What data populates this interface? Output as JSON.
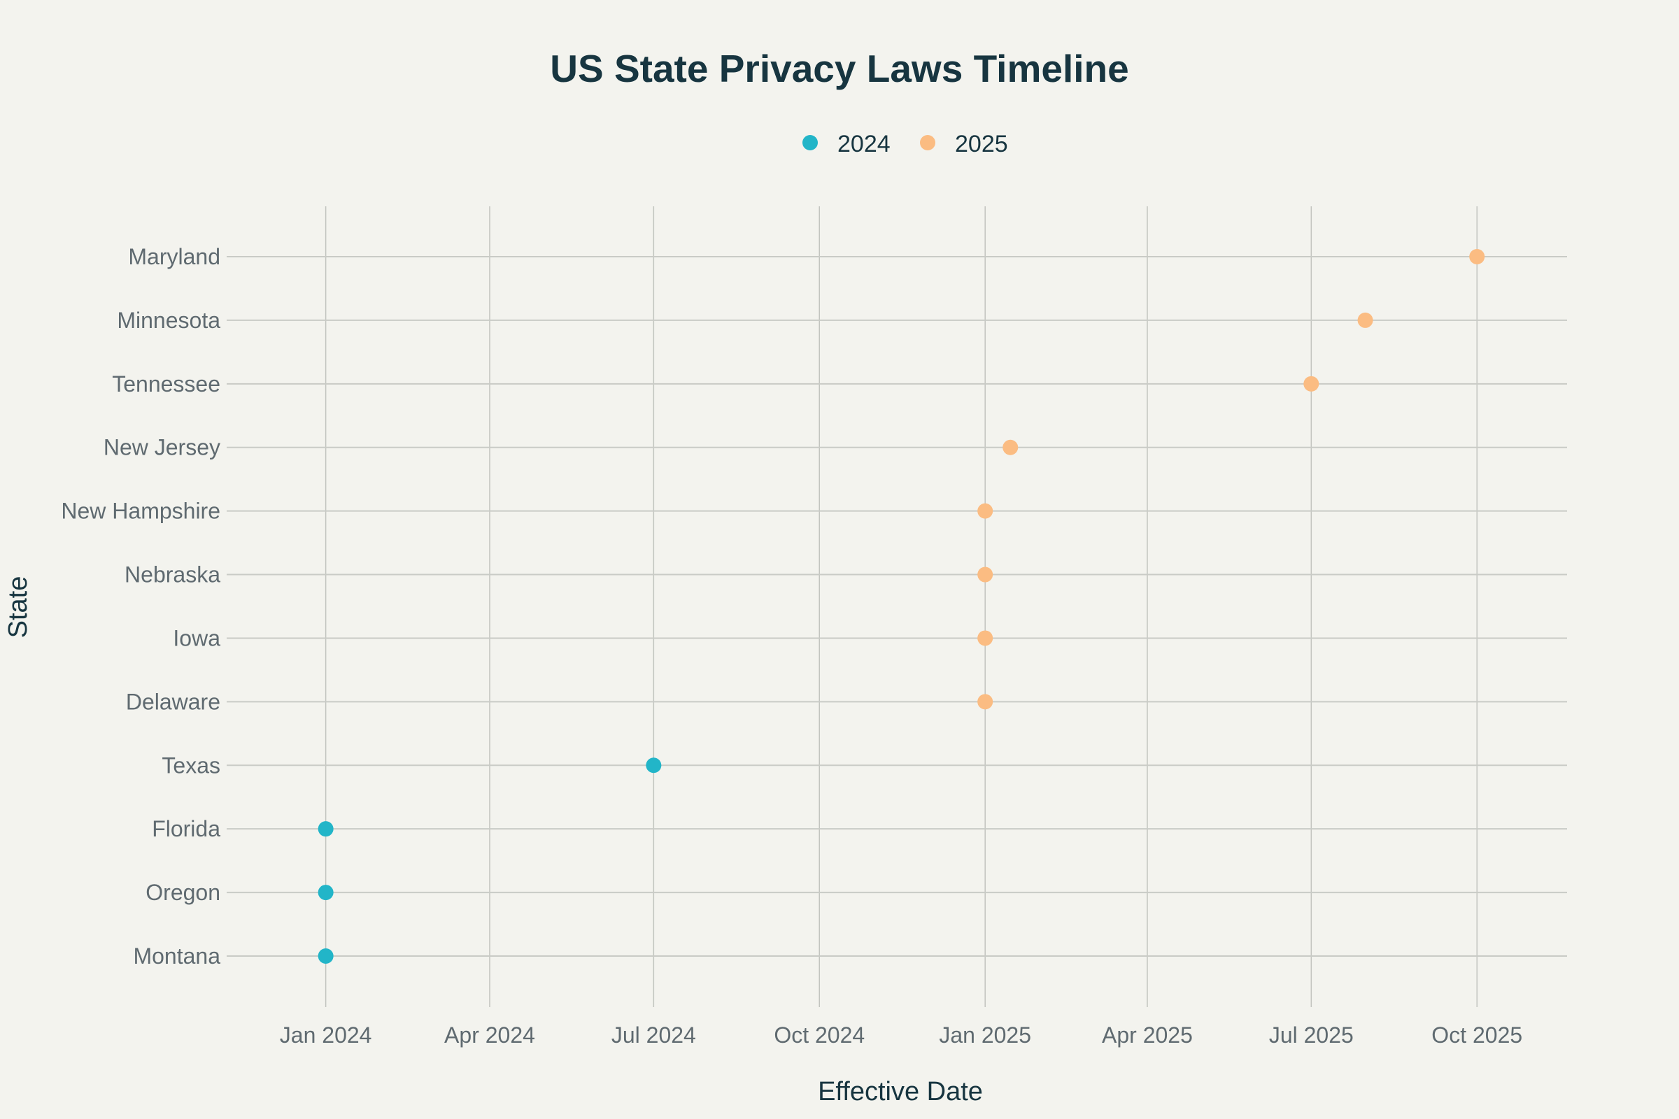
{
  "chart_data": {
    "type": "scatter",
    "title": "US State Privacy Laws Timeline",
    "xlabel": "Effective Date",
    "ylabel": "State",
    "x_axis_type": "date",
    "xlim": [
      "2023-11-07",
      "2025-11-20"
    ],
    "x_ticks": [
      {
        "date": "2024-01-01",
        "label": "Jan 2024"
      },
      {
        "date": "2024-04-01",
        "label": "Apr 2024"
      },
      {
        "date": "2024-07-01",
        "label": "Jul 2024"
      },
      {
        "date": "2024-10-01",
        "label": "Oct 2024"
      },
      {
        "date": "2025-01-01",
        "label": "Jan 2025"
      },
      {
        "date": "2025-04-01",
        "label": "Apr 2025"
      },
      {
        "date": "2025-07-01",
        "label": "Jul 2025"
      },
      {
        "date": "2025-10-01",
        "label": "Oct 2025"
      }
    ],
    "categories": [
      "Montana",
      "Oregon",
      "Florida",
      "Texas",
      "Delaware",
      "Iowa",
      "Nebraska",
      "New Hampshire",
      "New Jersey",
      "Tennessee",
      "Minnesota",
      "Maryland"
    ],
    "grid": true,
    "legend_position": "top-center",
    "series": [
      {
        "name": "2024",
        "color": "#22b5c8",
        "points": [
          {
            "state": "Montana",
            "date": "2024-01-01"
          },
          {
            "state": "Oregon",
            "date": "2024-01-01"
          },
          {
            "state": "Florida",
            "date": "2024-01-01"
          },
          {
            "state": "Texas",
            "date": "2024-07-01"
          }
        ]
      },
      {
        "name": "2025",
        "color": "#fbbc82",
        "points": [
          {
            "state": "Delaware",
            "date": "2025-01-01"
          },
          {
            "state": "Iowa",
            "date": "2025-01-01"
          },
          {
            "state": "Nebraska",
            "date": "2025-01-01"
          },
          {
            "state": "New Hampshire",
            "date": "2025-01-01"
          },
          {
            "state": "New Jersey",
            "date": "2025-01-15"
          },
          {
            "state": "Tennessee",
            "date": "2025-07-01"
          },
          {
            "state": "Minnesota",
            "date": "2025-07-31"
          },
          {
            "state": "Maryland",
            "date": "2025-10-01"
          }
        ]
      }
    ]
  }
}
